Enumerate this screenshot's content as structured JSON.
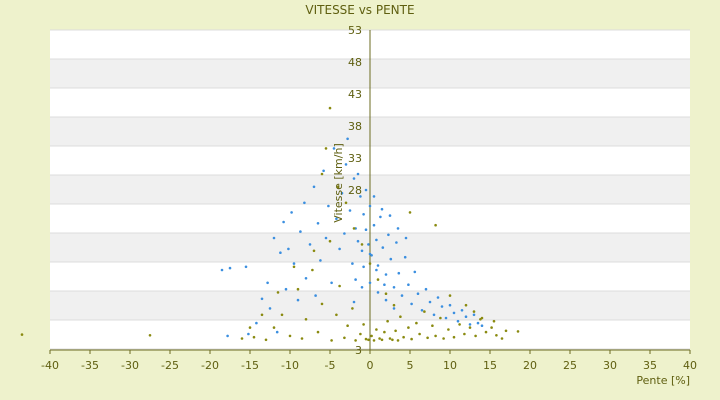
{
  "chart_data": {
    "type": "scatter",
    "title": "VITESSE vs PENTE",
    "xlabel": "Pente [%]",
    "ylabel": "Vitesse [km/h]",
    "xlim": [
      -40,
      40
    ],
    "ylim": [
      3,
      53
    ],
    "x_ticks": [
      "-40",
      "-35",
      "-30",
      "-25",
      "-20",
      "-15",
      "-10",
      "-5",
      "0",
      "5",
      "10",
      "15",
      "20",
      "25",
      "30",
      "35",
      "40"
    ],
    "y_ticks": [
      "53",
      "48",
      "43",
      "38",
      "33",
      "28",
      "3"
    ],
    "grid": "horizontal bands",
    "legend": "none",
    "series": [
      {
        "color": "#3b8fe0",
        "shape": "dot",
        "points": [
          [
            -18.5,
            15.5
          ],
          [
            -17.5,
            15.8
          ],
          [
            -17.8,
            5.2
          ],
          [
            -15.5,
            16.0
          ],
          [
            -15.2,
            5.5
          ],
          [
            -14.2,
            7.2
          ],
          [
            -13.5,
            11.0
          ],
          [
            -12.8,
            13.5
          ],
          [
            -12.5,
            9.5
          ],
          [
            -12.0,
            20.5
          ],
          [
            -11.6,
            5.8
          ],
          [
            -11.2,
            18.2
          ],
          [
            -10.8,
            23.0
          ],
          [
            -10.5,
            12.5
          ],
          [
            -10.2,
            18.8
          ],
          [
            -9.8,
            24.5
          ],
          [
            -9.5,
            16.5
          ],
          [
            -9.0,
            10.8
          ],
          [
            -8.7,
            21.5
          ],
          [
            -8.2,
            26.0
          ],
          [
            -8.0,
            14.2
          ],
          [
            -7.5,
            19.5
          ],
          [
            -7.0,
            28.5
          ],
          [
            -6.8,
            11.5
          ],
          [
            -6.5,
            22.8
          ],
          [
            -6.2,
            17.0
          ],
          [
            -5.8,
            31.0
          ],
          [
            -5.5,
            20.5
          ],
          [
            -5.2,
            25.5
          ],
          [
            -4.8,
            13.5
          ],
          [
            -4.5,
            34.5
          ],
          [
            -4.2,
            23.5
          ],
          [
            -3.8,
            18.8
          ],
          [
            -3.5,
            27.5
          ],
          [
            -3.2,
            21.2
          ],
          [
            -2.8,
            36.0
          ],
          [
            -2.5,
            24.8
          ],
          [
            -2.2,
            16.5
          ],
          [
            -2.0,
            29.8
          ],
          [
            -1.8,
            22.0
          ],
          [
            -1.5,
            20.0
          ],
          [
            -1.2,
            27.0
          ],
          [
            -1.0,
            18.5
          ],
          [
            -0.8,
            24.2
          ],
          [
            -0.5,
            21.8
          ],
          [
            -0.2,
            19.5
          ],
          [
            0.0,
            25.5
          ],
          [
            0.2,
            17.8
          ],
          [
            0.5,
            22.5
          ],
          [
            0.8,
            20.2
          ],
          [
            1.0,
            16.2
          ],
          [
            1.3,
            23.8
          ],
          [
            1.6,
            19.0
          ],
          [
            2.0,
            14.8
          ],
          [
            2.3,
            21.0
          ],
          [
            2.6,
            17.2
          ],
          [
            3.0,
            12.8
          ],
          [
            3.3,
            19.8
          ],
          [
            3.6,
            15.0
          ],
          [
            4.0,
            11.5
          ],
          [
            4.4,
            17.5
          ],
          [
            4.8,
            13.2
          ],
          [
            5.2,
            10.2
          ],
          [
            5.6,
            15.2
          ],
          [
            6.0,
            11.8
          ],
          [
            6.5,
            9.2
          ],
          [
            7.0,
            12.5
          ],
          [
            7.5,
            10.5
          ],
          [
            8.0,
            8.5
          ],
          [
            8.5,
            11.2
          ],
          [
            9.0,
            9.8
          ],
          [
            9.5,
            8.0
          ],
          [
            10.0,
            10.0
          ],
          [
            10.5,
            8.8
          ],
          [
            11.0,
            7.5
          ],
          [
            11.5,
            9.2
          ],
          [
            12.0,
            8.2
          ],
          [
            12.5,
            7.0
          ],
          [
            13.0,
            8.5
          ],
          [
            13.5,
            7.2
          ],
          [
            14.0,
            6.8
          ],
          [
            -2.0,
            10.5
          ],
          [
            -1.0,
            12.8
          ],
          [
            0.0,
            13.5
          ],
          [
            1.0,
            12.0
          ],
          [
            2.0,
            10.8
          ],
          [
            3.0,
            9.5
          ],
          [
            0.5,
            27.0
          ],
          [
            -0.5,
            28.0
          ],
          [
            -1.5,
            30.5
          ],
          [
            -3.0,
            32.0
          ],
          [
            1.5,
            25.0
          ],
          [
            2.5,
            24.0
          ],
          [
            3.5,
            22.0
          ],
          [
            4.5,
            20.5
          ],
          [
            0.0,
            18.0
          ],
          [
            0.8,
            15.5
          ],
          [
            -0.8,
            16.0
          ],
          [
            1.8,
            13.2
          ],
          [
            -1.8,
            14.0
          ]
        ]
      },
      {
        "color": "#8a8a10",
        "shape": "dot",
        "points": [
          [
            -43.5,
            5.4
          ],
          [
            -27.5,
            5.3
          ],
          [
            -16.0,
            4.8
          ],
          [
            -14.5,
            5.0
          ],
          [
            -13.0,
            4.6
          ],
          [
            -12.0,
            6.5
          ],
          [
            -11.0,
            8.5
          ],
          [
            -10.0,
            5.2
          ],
          [
            -9.0,
            12.5
          ],
          [
            -8.5,
            4.8
          ],
          [
            -8.0,
            7.8
          ],
          [
            -7.2,
            15.5
          ],
          [
            -6.5,
            5.8
          ],
          [
            -6.0,
            10.2
          ],
          [
            -5.5,
            34.5
          ],
          [
            -5.0,
            40.8
          ],
          [
            -4.8,
            4.5
          ],
          [
            -4.2,
            8.5
          ],
          [
            -3.8,
            13.0
          ],
          [
            -3.2,
            4.9
          ],
          [
            -2.8,
            6.8
          ],
          [
            -2.2,
            9.5
          ],
          [
            -1.8,
            4.5
          ],
          [
            -1.2,
            5.5
          ],
          [
            -0.8,
            7.0
          ],
          [
            -0.2,
            4.6
          ],
          [
            0.2,
            5.2
          ],
          [
            0.8,
            6.2
          ],
          [
            1.2,
            4.8
          ],
          [
            1.8,
            5.8
          ],
          [
            2.2,
            7.5
          ],
          [
            2.8,
            4.6
          ],
          [
            3.2,
            6.0
          ],
          [
            3.8,
            8.2
          ],
          [
            4.2,
            5.0
          ],
          [
            4.8,
            6.5
          ],
          [
            5.2,
            4.7
          ],
          [
            5.8,
            7.2
          ],
          [
            6.2,
            5.5
          ],
          [
            6.8,
            9.0
          ],
          [
            7.2,
            4.9
          ],
          [
            7.8,
            6.8
          ],
          [
            8.2,
            5.2
          ],
          [
            8.8,
            8.0
          ],
          [
            9.2,
            4.8
          ],
          [
            9.8,
            6.2
          ],
          [
            10.5,
            5.0
          ],
          [
            11.2,
            7.0
          ],
          [
            11.8,
            5.5
          ],
          [
            12.5,
            6.5
          ],
          [
            13.2,
            5.2
          ],
          [
            13.8,
            7.8
          ],
          [
            14.5,
            5.8
          ],
          [
            15.2,
            6.5
          ],
          [
            15.8,
            5.3
          ],
          [
            16.5,
            4.8
          ],
          [
            17.0,
            6.0
          ],
          [
            18.5,
            5.9
          ],
          [
            8.2,
            22.5
          ],
          [
            5.0,
            24.5
          ],
          [
            -6.0,
            30.5
          ],
          [
            -4.0,
            28.5
          ],
          [
            -3.0,
            26.0
          ],
          [
            -2.0,
            22.0
          ],
          [
            -1.0,
            19.5
          ],
          [
            0.0,
            16.5
          ],
          [
            1.0,
            14.0
          ],
          [
            2.0,
            11.8
          ],
          [
            3.0,
            10.0
          ],
          [
            -5.0,
            20.0
          ],
          [
            -7.0,
            18.5
          ],
          [
            -9.5,
            16.0
          ],
          [
            -11.5,
            12.0
          ],
          [
            -13.5,
            8.5
          ],
          [
            -15.0,
            6.5
          ],
          [
            12.0,
            10.0
          ],
          [
            13.0,
            9.0
          ],
          [
            14.0,
            8.0
          ],
          [
            15.5,
            7.5
          ],
          [
            10.0,
            11.5
          ],
          [
            0.5,
            4.5
          ],
          [
            -0.5,
            4.7
          ],
          [
            1.5,
            4.6
          ],
          [
            2.5,
            4.8
          ],
          [
            3.5,
            4.5
          ]
        ]
      }
    ]
  }
}
